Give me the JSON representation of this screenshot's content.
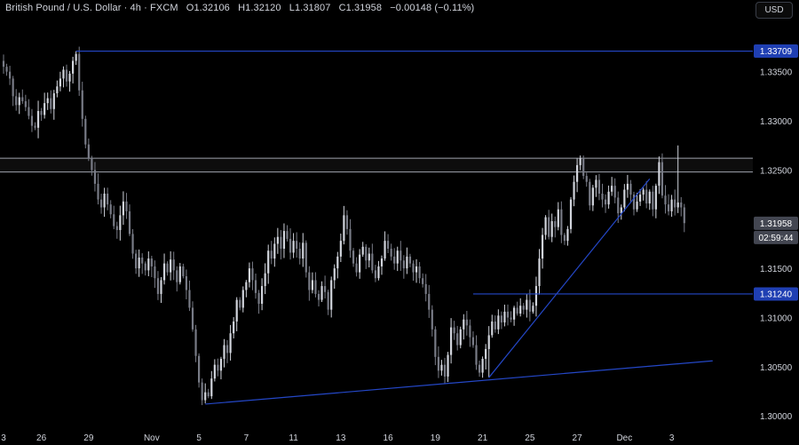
{
  "header": {
    "symbol": "British Pound / U.S. Dollar · 4h · FXCM",
    "open_label": "O",
    "open": "1.32106",
    "high_label": "H",
    "high": "1.32120",
    "low_label": "L",
    "low": "1.31807",
    "close_label": "C",
    "close": "1.31958",
    "change": "−0.00148 (−0.11%)",
    "currency_button": "USD"
  },
  "colors": {
    "background": "#000000",
    "candle_up": "#d1d4dc",
    "candle_down": "#787b86",
    "trend_line": "#2962ff",
    "level_line": "#1e40af",
    "zone_border": "#9ea3ad",
    "axis_text": "#d1d4dc",
    "label_blue": "#1e3fa0",
    "label_gray": "#434651"
  },
  "chart_data": {
    "type": "candlestick",
    "ylim": [
      1.2993,
      1.3403
    ],
    "y_ticks": [
      "1.30000",
      "1.30500",
      "1.31000",
      "1.31500",
      "1.32000",
      "1.32500",
      "1.33000",
      "1.33500"
    ],
    "y_tick_values": [
      1.3,
      1.305,
      1.31,
      1.315,
      1.32,
      1.325,
      1.33,
      1.335
    ],
    "x_ticks": [
      "3",
      "26",
      "29",
      "Nov",
      "5",
      "7",
      "11",
      "13",
      "16",
      "19",
      "21",
      "25",
      "27",
      "Dec",
      "3"
    ],
    "x_tick_index": [
      0,
      12,
      27,
      47,
      62,
      77,
      92,
      107,
      122,
      137,
      152,
      167,
      182,
      197,
      212
    ],
    "price_labels": [
      {
        "value": "1.33709",
        "price": 1.33709,
        "style": "blue"
      },
      {
        "value": "1.31240",
        "price": 1.3124,
        "style": "blue"
      },
      {
        "value": "1.31958",
        "price": 1.31958,
        "style": "gray"
      },
      {
        "value": "02:59:44",
        "price": 1.3182,
        "style": "gray"
      }
    ],
    "resistance_zone": [
      1.3248,
      1.3262
    ],
    "horizontal_lines": [
      {
        "price": 1.33709,
        "from_index": 23
      },
      {
        "price": 1.3124,
        "from_index": 149
      }
    ],
    "trend_lines": [
      {
        "i1": 64,
        "p1": 1.3012,
        "i2": 225,
        "p2": 1.3056
      },
      {
        "i1": 154,
        "p1": 1.3039,
        "i2": 205,
        "p2": 1.3241
      }
    ],
    "closes": [
      1.3355,
      1.335,
      1.3343,
      1.3325,
      1.3316,
      1.3324,
      1.332,
      1.3314,
      1.3305,
      1.3295,
      1.3293,
      1.331,
      1.3306,
      1.3318,
      1.3323,
      1.3312,
      1.3328,
      1.3335,
      1.3343,
      1.3352,
      1.334,
      1.3348,
      1.3361,
      1.3368,
      1.3331,
      1.3302,
      1.3276,
      1.3262,
      1.325,
      1.3236,
      1.322,
      1.3212,
      1.3226,
      1.3215,
      1.3205,
      1.3193,
      1.3189,
      1.3204,
      1.3218,
      1.3208,
      1.3185,
      1.3165,
      1.315,
      1.3161,
      1.3155,
      1.3148,
      1.316,
      1.3152,
      1.314,
      1.3124,
      1.3138,
      1.3155,
      1.3146,
      1.3159,
      1.3148,
      1.3136,
      1.3152,
      1.3142,
      1.3128,
      1.311,
      1.3088,
      1.3061,
      1.3034,
      1.3016,
      1.3024,
      1.302,
      1.3038,
      1.3052,
      1.3046,
      1.3058,
      1.3072,
      1.3064,
      1.3084,
      1.3096,
      1.3118,
      1.311,
      1.3128,
      1.3136,
      1.315,
      1.3138,
      1.3125,
      1.3114,
      1.3132,
      1.3145,
      1.3168,
      1.316,
      1.3175,
      1.3182,
      1.317,
      1.3188,
      1.318,
      1.3166,
      1.3178,
      1.317,
      1.316,
      1.3176,
      1.3146,
      1.3128,
      1.3138,
      1.3124,
      1.3118,
      1.3132,
      1.3126,
      1.3108,
      1.3138,
      1.315,
      1.3162,
      1.3178,
      1.3204,
      1.319,
      1.3168,
      1.3155,
      1.3146,
      1.3164,
      1.3172,
      1.3158,
      1.3165,
      1.3148,
      1.314,
      1.3152,
      1.316,
      1.3178,
      1.317,
      1.3162,
      1.3155,
      1.3168,
      1.3158,
      1.315,
      1.3162,
      1.3155,
      1.3146,
      1.3152,
      1.314,
      1.3134,
      1.3124,
      1.3108,
      1.3088,
      1.306,
      1.3046,
      1.3052,
      1.304,
      1.3062,
      1.309,
      1.3084,
      1.3072,
      1.3088,
      1.3098,
      1.3092,
      1.308,
      1.3072,
      1.3052,
      1.3044,
      1.3058,
      1.3068,
      1.3082,
      1.3096,
      1.3088,
      1.3102,
      1.3095,
      1.3106,
      1.31,
      1.3098,
      1.311,
      1.3104,
      1.3112,
      1.3108,
      1.3118,
      1.3106,
      1.3112,
      1.3132,
      1.316,
      1.3184,
      1.3202,
      1.3182,
      1.3198,
      1.3192,
      1.321,
      1.3184,
      1.3178,
      1.319,
      1.322,
      1.3238,
      1.3255,
      1.3262,
      1.3244,
      1.3238,
      1.3214,
      1.3232,
      1.324,
      1.3226,
      1.322,
      1.3215,
      1.3228,
      1.3234,
      1.3222,
      1.3206,
      1.3212,
      1.323,
      1.3236,
      1.3225,
      1.321,
      1.3218,
      1.3225,
      1.323,
      1.3216,
      1.3228,
      1.321,
      1.3234,
      1.3258,
      1.3224,
      1.3215,
      1.3208,
      1.322,
      1.3212,
      1.3217,
      1.3212,
      1.3196
    ]
  }
}
